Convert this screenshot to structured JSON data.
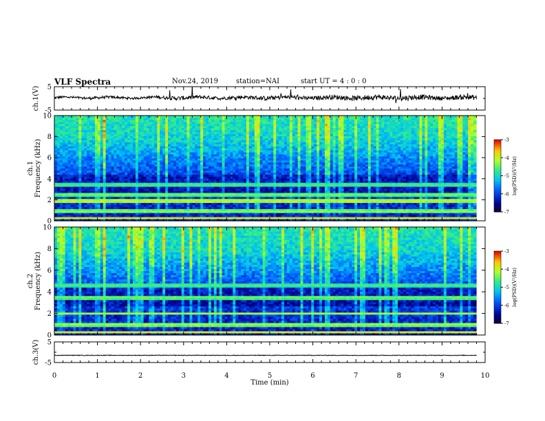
{
  "header": {
    "title": "VLF Spectra",
    "date": "Nov.24, 2019",
    "station": "station=NAI",
    "start": "start  UT =   4 : 0  : 0"
  },
  "chart_data": [
    {
      "type": "line",
      "panel": "ch1-waveform",
      "ylabel": "ch.1(V)",
      "ylim": [
        -5,
        5
      ],
      "yticks": [
        "5",
        "-5"
      ],
      "xlim": [
        0,
        10
      ],
      "baseline_v": 0.3,
      "approx_envelope": {
        "x": [
          0,
          1,
          2,
          3,
          4,
          5,
          6,
          7,
          8,
          9,
          9.8
        ],
        "min": [
          -0.6,
          -0.8,
          -0.7,
          -1.2,
          -0.9,
          -1.0,
          -0.9,
          -1.1,
          -1.3,
          -1.0,
          -1.2
        ],
        "max": [
          1.0,
          1.2,
          0.9,
          1.8,
          1.4,
          2.2,
          1.9,
          2.4,
          2.6,
          2.0,
          2.5
        ]
      }
    },
    {
      "type": "heatmap",
      "panel": "ch1-spectrogram",
      "ylabel": "ch.1",
      "ylabel2": "Frequency (kHz)",
      "ylim": [
        0,
        10
      ],
      "yticks": [
        "0",
        "2",
        "4",
        "6",
        "8",
        "10"
      ],
      "xlim": [
        0,
        10
      ],
      "colorbar": {
        "label": "log(PSD)(V²/Hz)",
        "range": [
          -7,
          -3
        ],
        "ticks": [
          "-3",
          "-4",
          "-5",
          "-6",
          "-7"
        ]
      },
      "bands_khz": [
        {
          "f": 0.3,
          "v": -4.0
        },
        {
          "f": 0.9,
          "v": -4.5
        },
        {
          "f": 1.9,
          "v": -4.2
        },
        {
          "f": 2.5,
          "v": -4.6
        },
        {
          "f": 3.4,
          "v": -4.8
        }
      ]
    },
    {
      "type": "heatmap",
      "panel": "ch2-spectrogram",
      "ylabel": "ch.2",
      "ylabel2": "Frequency (kHz)",
      "ylim": [
        0,
        10
      ],
      "yticks": [
        "0",
        "2",
        "4",
        "6",
        "8",
        "10"
      ],
      "xlim": [
        0,
        10
      ],
      "colorbar": {
        "label": "log(PSD)(V²/Hz)",
        "range": [
          -7,
          -3
        ],
        "ticks": [
          "-3",
          "-4",
          "-5",
          "-6",
          "-7"
        ]
      },
      "bands_khz": [
        {
          "f": 0.3,
          "v": -4.0
        },
        {
          "f": 1.0,
          "v": -4.4
        },
        {
          "f": 2.0,
          "v": -4.3
        },
        {
          "f": 3.5,
          "v": -4.6
        },
        {
          "f": 4.6,
          "v": -4.8
        }
      ]
    },
    {
      "type": "line",
      "panel": "ch3-waveform",
      "ylabel": "ch.3(V)",
      "ylim": [
        -5,
        5
      ],
      "yticks": [
        "5",
        "-5"
      ],
      "xlim": [
        0,
        10
      ],
      "baseline_v": -1.5
    }
  ],
  "xaxis": {
    "label": "Time  (min)",
    "ticks": [
      "0",
      "1",
      "2",
      "3",
      "4",
      "5",
      "6",
      "7",
      "8",
      "9",
      "10"
    ]
  }
}
